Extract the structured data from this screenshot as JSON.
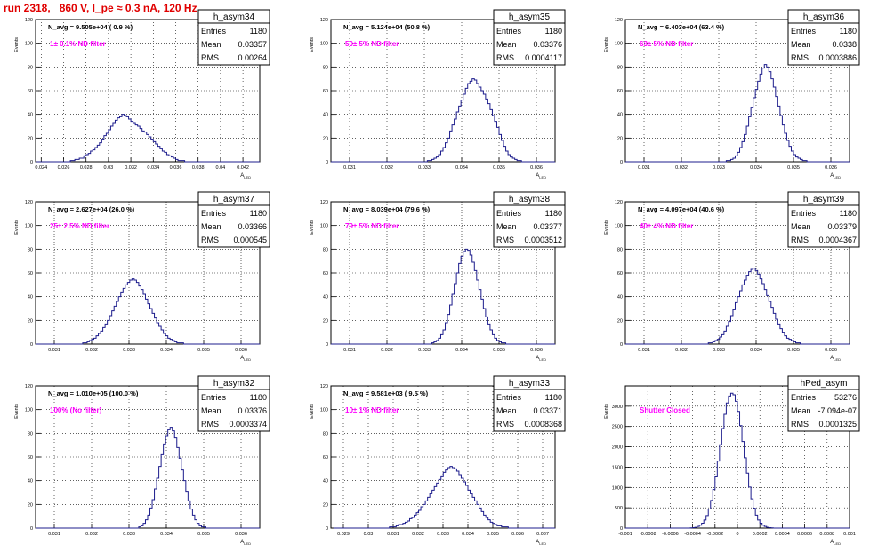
{
  "page_title": "run 2318,   860 V, I_pe ≈ 0.3 nA, 120 Hz",
  "stats_labels": {
    "entries": "Entries",
    "mean": "Mean",
    "rms": "RMS"
  },
  "axis": {
    "ylabel": "Events",
    "xlabel": "A",
    "xlabel_sub": "LED"
  },
  "colors": {
    "hist": "#1c1c8c",
    "annotation": "#ff00ff",
    "title_red": "#e00000"
  },
  "chart_data": [
    {
      "type": "bar",
      "name": "h_asym34",
      "navg": "N_avg = 9.505e+04 ( 0.9 %)",
      "filter": "1± 0.1% ND filter",
      "entries": "1180",
      "mean": "0.03357",
      "rms": "0.00264",
      "xlim": [
        0.0235,
        0.0435
      ],
      "ylim": [
        0,
        120
      ],
      "yticks": [
        0,
        20,
        40,
        60,
        80,
        100,
        120
      ],
      "xticks": [
        0.024,
        0.026,
        0.028,
        0.03,
        0.032,
        0.034,
        0.036,
        0.038,
        0.04,
        0.042
      ],
      "xtick_labels": [
        "0.024",
        "0.026",
        "0.028",
        "0.03",
        "0.032",
        "0.034",
        "0.036",
        "0.038",
        "0.04",
        "0.042"
      ],
      "bins": {
        "start": 0.0236,
        "width": 0.0002,
        "values": [
          0,
          0,
          0,
          0,
          0,
          0,
          0,
          0,
          0,
          0,
          0,
          0,
          0,
          0,
          0,
          1,
          1,
          2,
          2,
          3,
          3,
          5,
          6,
          7,
          9,
          10,
          12,
          14,
          16,
          19,
          22,
          24,
          27,
          30,
          33,
          35,
          37,
          38,
          40,
          39,
          38,
          36,
          34,
          33,
          31,
          30,
          28,
          26,
          25,
          23,
          21,
          19,
          17,
          15,
          13,
          11,
          9,
          8,
          6,
          5,
          4,
          3,
          2,
          1,
          1,
          1,
          0,
          0,
          0,
          0,
          0,
          0,
          0,
          0,
          0,
          0,
          0,
          0,
          0,
          0,
          0,
          0,
          0,
          0,
          0,
          0,
          0,
          0,
          0,
          0,
          0,
          0,
          0,
          0,
          0,
          0,
          0,
          0,
          0,
          0
        ]
      }
    },
    {
      "type": "bar",
      "name": "h_asym35",
      "navg": "N_avg = 5.124e+04 (50.8 %)",
      "filter": "50± 5% ND filter",
      "entries": "1180",
      "mean": "0.03376",
      "rms": "0.0004117",
      "xlim": [
        0.0305,
        0.0365
      ],
      "ylim": [
        0,
        120
      ],
      "yticks": [
        0,
        20,
        40,
        60,
        80,
        100,
        120
      ],
      "xticks": [
        0.031,
        0.032,
        0.033,
        0.034,
        0.035,
        0.036
      ],
      "xtick_labels": [
        "0.031",
        "0.032",
        "0.033",
        "0.034",
        "0.035",
        "0.036"
      ],
      "bins": {
        "start": 0.0305,
        "width": 6e-05,
        "values": [
          0,
          0,
          0,
          0,
          0,
          0,
          0,
          0,
          0,
          0,
          0,
          0,
          0,
          0,
          0,
          0,
          0,
          0,
          0,
          0,
          0,
          0,
          0,
          0,
          0,
          0,
          0,
          0,
          0,
          0,
          0,
          0,
          0,
          0,
          0,
          0,
          0,
          0,
          0,
          0,
          0,
          0,
          0,
          1,
          1,
          2,
          3,
          4,
          6,
          9,
          12,
          16,
          20,
          26,
          31,
          36,
          42,
          47,
          52,
          57,
          62,
          66,
          68,
          70,
          69,
          66,
          63,
          60,
          57,
          53,
          49,
          44,
          39,
          34,
          29,
          23,
          18,
          13,
          9,
          6,
          4,
          3,
          2,
          1,
          1,
          0,
          0,
          0,
          0,
          0,
          0,
          0,
          0,
          0,
          0,
          0,
          0,
          0,
          0,
          0
        ]
      }
    },
    {
      "type": "bar",
      "name": "h_asym36",
      "navg": "N_avg = 6.403e+04 (63.4 %)",
      "filter": "63± 5% ND filter",
      "entries": "1180",
      "mean": "0.0338",
      "rms": "0.0003886",
      "xlim": [
        0.0305,
        0.0365
      ],
      "ylim": [
        0,
        120
      ],
      "yticks": [
        0,
        20,
        40,
        60,
        80,
        100,
        120
      ],
      "xticks": [
        0.031,
        0.032,
        0.033,
        0.034,
        0.035,
        0.036
      ],
      "xtick_labels": [
        "0.031",
        "0.032",
        "0.033",
        "0.034",
        "0.035",
        "0.036"
      ],
      "bins": {
        "start": 0.0305,
        "width": 6e-05,
        "values": [
          0,
          0,
          0,
          0,
          0,
          0,
          0,
          0,
          0,
          0,
          0,
          0,
          0,
          0,
          0,
          0,
          0,
          0,
          0,
          0,
          0,
          0,
          0,
          0,
          0,
          0,
          0,
          0,
          0,
          0,
          0,
          0,
          0,
          0,
          0,
          0,
          0,
          0,
          0,
          0,
          0,
          0,
          0,
          0,
          0,
          1,
          1,
          2,
          3,
          5,
          8,
          12,
          17,
          23,
          30,
          38,
          46,
          54,
          61,
          68,
          74,
          79,
          82,
          80,
          76,
          70,
          63,
          55,
          47,
          39,
          31,
          24,
          18,
          13,
          9,
          6,
          4,
          3,
          2,
          1,
          1,
          0,
          0,
          0,
          0,
          0,
          0,
          0,
          0,
          0,
          0,
          0,
          0,
          0,
          0,
          0,
          0,
          0,
          0,
          0
        ]
      }
    },
    {
      "type": "bar",
      "name": "h_asym37",
      "navg": "N_avg = 2.627e+04 (26.0 %)",
      "filter": "25± 2.5% ND filter",
      "entries": "1180",
      "mean": "0.03366",
      "rms": "0.000545",
      "xlim": [
        0.0305,
        0.0365
      ],
      "ylim": [
        0,
        120
      ],
      "yticks": [
        0,
        20,
        40,
        60,
        80,
        100,
        120
      ],
      "xticks": [
        0.031,
        0.032,
        0.033,
        0.034,
        0.035,
        0.036
      ],
      "xtick_labels": [
        "0.031",
        "0.032",
        "0.033",
        "0.034",
        "0.035",
        "0.036"
      ],
      "bins": {
        "start": 0.0305,
        "width": 6e-05,
        "values": [
          0,
          0,
          0,
          0,
          0,
          0,
          0,
          0,
          0,
          0,
          0,
          0,
          0,
          0,
          0,
          0,
          0,
          0,
          0,
          0,
          0,
          1,
          1,
          2,
          3,
          4,
          5,
          7,
          9,
          11,
          14,
          17,
          20,
          24,
          28,
          32,
          36,
          40,
          44,
          47,
          50,
          52,
          54,
          55,
          54,
          52,
          49,
          46,
          42,
          38,
          34,
          30,
          26,
          22,
          18,
          15,
          12,
          9,
          7,
          5,
          4,
          3,
          2,
          1,
          1,
          1,
          0,
          0,
          0,
          0,
          0,
          0,
          0,
          0,
          0,
          0,
          0,
          0,
          0,
          0,
          0,
          0,
          0,
          0,
          0,
          0,
          0,
          0,
          0,
          0,
          0,
          0,
          0,
          0,
          0,
          0,
          0,
          0,
          0,
          0
        ]
      }
    },
    {
      "type": "bar",
      "name": "h_asym38",
      "navg": "N_avg = 8.039e+04 (79.6 %)",
      "filter": "79± 5% ND filter",
      "entries": "1180",
      "mean": "0.03377",
      "rms": "0.0003512",
      "xlim": [
        0.0305,
        0.0365
      ],
      "ylim": [
        0,
        120
      ],
      "yticks": [
        0,
        20,
        40,
        60,
        80,
        100,
        120
      ],
      "xticks": [
        0.031,
        0.032,
        0.033,
        0.034,
        0.035,
        0.036
      ],
      "xtick_labels": [
        "0.031",
        "0.032",
        "0.033",
        "0.034",
        "0.035",
        "0.036"
      ],
      "bins": {
        "start": 0.0305,
        "width": 6e-05,
        "values": [
          0,
          0,
          0,
          0,
          0,
          0,
          0,
          0,
          0,
          0,
          0,
          0,
          0,
          0,
          0,
          0,
          0,
          0,
          0,
          0,
          0,
          0,
          0,
          0,
          0,
          0,
          0,
          0,
          0,
          0,
          0,
          0,
          0,
          0,
          0,
          0,
          0,
          0,
          0,
          0,
          0,
          0,
          0,
          0,
          0,
          1,
          2,
          3,
          5,
          8,
          12,
          18,
          25,
          33,
          42,
          51,
          60,
          68,
          74,
          78,
          80,
          79,
          75,
          69,
          62,
          54,
          46,
          38,
          30,
          23,
          17,
          12,
          8,
          5,
          3,
          2,
          1,
          1,
          0,
          0,
          0,
          0,
          0,
          0,
          0,
          0,
          0,
          0,
          0,
          0,
          0,
          0,
          0,
          0,
          0,
          0,
          0,
          0,
          0,
          0
        ]
      }
    },
    {
      "type": "bar",
      "name": "h_asym39",
      "navg": "N_avg = 4.097e+04 (40.6 %)",
      "filter": "40± 4% ND filter",
      "entries": "1180",
      "mean": "0.03379",
      "rms": "0.0004367",
      "xlim": [
        0.0305,
        0.0365
      ],
      "ylim": [
        0,
        120
      ],
      "yticks": [
        0,
        20,
        40,
        60,
        80,
        100,
        120
      ],
      "xticks": [
        0.031,
        0.032,
        0.033,
        0.034,
        0.035,
        0.036
      ],
      "xtick_labels": [
        "0.031",
        "0.032",
        "0.033",
        "0.034",
        "0.035",
        "0.036"
      ],
      "bins": {
        "start": 0.0305,
        "width": 6e-05,
        "values": [
          0,
          0,
          0,
          0,
          0,
          0,
          0,
          0,
          0,
          0,
          0,
          0,
          0,
          0,
          0,
          0,
          0,
          0,
          0,
          0,
          0,
          0,
          0,
          0,
          0,
          0,
          0,
          0,
          0,
          0,
          0,
          0,
          0,
          0,
          0,
          0,
          0,
          1,
          1,
          2,
          3,
          4,
          6,
          8,
          11,
          15,
          19,
          24,
          29,
          35,
          40,
          45,
          50,
          54,
          58,
          61,
          63,
          64,
          62,
          59,
          55,
          51,
          46,
          41,
          36,
          31,
          26,
          21,
          17,
          13,
          10,
          7,
          5,
          4,
          3,
          2,
          1,
          1,
          0,
          0,
          0,
          0,
          0,
          0,
          0,
          0,
          0,
          0,
          0,
          0,
          0,
          0,
          0,
          0,
          0,
          0,
          0,
          0,
          0,
          0
        ]
      }
    },
    {
      "type": "bar",
      "name": "h_asym32",
      "navg": "N_avg = 1.010e+05 (100.0 %)",
      "filter": "100% (No filter)",
      "entries": "1180",
      "mean": "0.03376",
      "rms": "0.0003374",
      "xlim": [
        0.0305,
        0.0365
      ],
      "ylim": [
        0,
        120
      ],
      "yticks": [
        0,
        20,
        40,
        60,
        80,
        100,
        120
      ],
      "xticks": [
        0.031,
        0.032,
        0.033,
        0.034,
        0.035,
        0.036
      ],
      "xtick_labels": [
        "0.031",
        "0.032",
        "0.033",
        "0.034",
        "0.035",
        "0.036"
      ],
      "bins": {
        "start": 0.0305,
        "width": 6e-05,
        "values": [
          0,
          0,
          0,
          0,
          0,
          0,
          0,
          0,
          0,
          0,
          0,
          0,
          0,
          0,
          0,
          0,
          0,
          0,
          0,
          0,
          0,
          0,
          0,
          0,
          0,
          0,
          0,
          0,
          0,
          0,
          0,
          0,
          0,
          0,
          0,
          0,
          0,
          0,
          0,
          0,
          0,
          0,
          0,
          0,
          0,
          0,
          1,
          2,
          4,
          7,
          11,
          17,
          24,
          33,
          42,
          52,
          62,
          71,
          78,
          83,
          85,
          82,
          76,
          68,
          59,
          49,
          40,
          31,
          23,
          16,
          11,
          7,
          4,
          2,
          1,
          1,
          0,
          0,
          0,
          0,
          0,
          0,
          0,
          0,
          0,
          0,
          0,
          0,
          0,
          0,
          0,
          0,
          0,
          0,
          0,
          0,
          0,
          0,
          0,
          0
        ]
      }
    },
    {
      "type": "bar",
      "name": "h_asym33",
      "navg": "N_avg = 9.581e+03 ( 9.5 %)",
      "filter": "10± 1% ND filter",
      "entries": "1180",
      "mean": "0.03371",
      "rms": "0.0008368",
      "xlim": [
        0.0285,
        0.0375
      ],
      "ylim": [
        0,
        120
      ],
      "yticks": [
        0,
        20,
        40,
        60,
        80,
        100,
        120
      ],
      "xticks": [
        0.029,
        0.03,
        0.031,
        0.032,
        0.033,
        0.034,
        0.035,
        0.036,
        0.037
      ],
      "xtick_labels": [
        "0.029",
        "0.03",
        "0.031",
        "0.032",
        "0.033",
        "0.034",
        "0.035",
        "0.036",
        "0.037"
      ],
      "bins": {
        "start": 0.0286,
        "width": 9e-05,
        "values": [
          0,
          0,
          0,
          0,
          0,
          0,
          0,
          0,
          0,
          0,
          0,
          0,
          0,
          0,
          0,
          0,
          0,
          0,
          0,
          0,
          0,
          0,
          0,
          0,
          0,
          1,
          1,
          1,
          2,
          3,
          3,
          4,
          5,
          6,
          8,
          9,
          11,
          13,
          15,
          18,
          20,
          23,
          26,
          29,
          32,
          35,
          38,
          41,
          44,
          47,
          49,
          51,
          52,
          51,
          50,
          48,
          45,
          42,
          39,
          36,
          32,
          29,
          26,
          23,
          20,
          17,
          14,
          11,
          9,
          7,
          5,
          4,
          3,
          2,
          2,
          1,
          1,
          1,
          0,
          0,
          0,
          0,
          0,
          0,
          0,
          0,
          0,
          0,
          0,
          0,
          0,
          0,
          0,
          0,
          0,
          0,
          0,
          0,
          0,
          0
        ]
      }
    },
    {
      "type": "bar",
      "name": "hPed_asym",
      "navg": "",
      "filter": "Shutter Closed",
      "entries": "53276",
      "mean": "-7.094e-07",
      "rms": "0.0001325",
      "xlim": [
        -0.001,
        0.001
      ],
      "ylim": [
        0,
        3500
      ],
      "yticks": [
        0,
        500,
        1000,
        1500,
        2000,
        2500,
        3000
      ],
      "xticks": [
        -0.001,
        -0.0008,
        -0.0006,
        -0.0004,
        -0.0002,
        0,
        0.0002,
        0.0004,
        0.0006,
        0.0008,
        0.001
      ],
      "xtick_labels": [
        "-0.001",
        "-0.0008",
        "-0.0006",
        "-0.0004",
        "-0.0002",
        "0",
        "0.0002",
        "0.0004",
        "0.0006",
        "0.0008",
        "0.001"
      ],
      "bins": {
        "start": -0.001,
        "width": 2e-05,
        "values": [
          0,
          0,
          0,
          0,
          0,
          0,
          0,
          0,
          0,
          0,
          0,
          0,
          0,
          0,
          0,
          0,
          0,
          0,
          0,
          0,
          0,
          0,
          0,
          0,
          0,
          0,
          0,
          0,
          0,
          5,
          10,
          20,
          40,
          70,
          120,
          200,
          310,
          470,
          680,
          950,
          1280,
          1650,
          2050,
          2450,
          2800,
          3080,
          3250,
          3320,
          3280,
          3120,
          2870,
          2520,
          2130,
          1730,
          1350,
          1010,
          720,
          490,
          320,
          200,
          120,
          70,
          40,
          20,
          10,
          5,
          0,
          0,
          0,
          0,
          0,
          0,
          0,
          0,
          0,
          0,
          0,
          0,
          0,
          0,
          0,
          0,
          0,
          0,
          0,
          0,
          0,
          0,
          0,
          0,
          0,
          0,
          0,
          0,
          0,
          0,
          0,
          0,
          0,
          0,
          0,
          0
        ]
      }
    }
  ]
}
